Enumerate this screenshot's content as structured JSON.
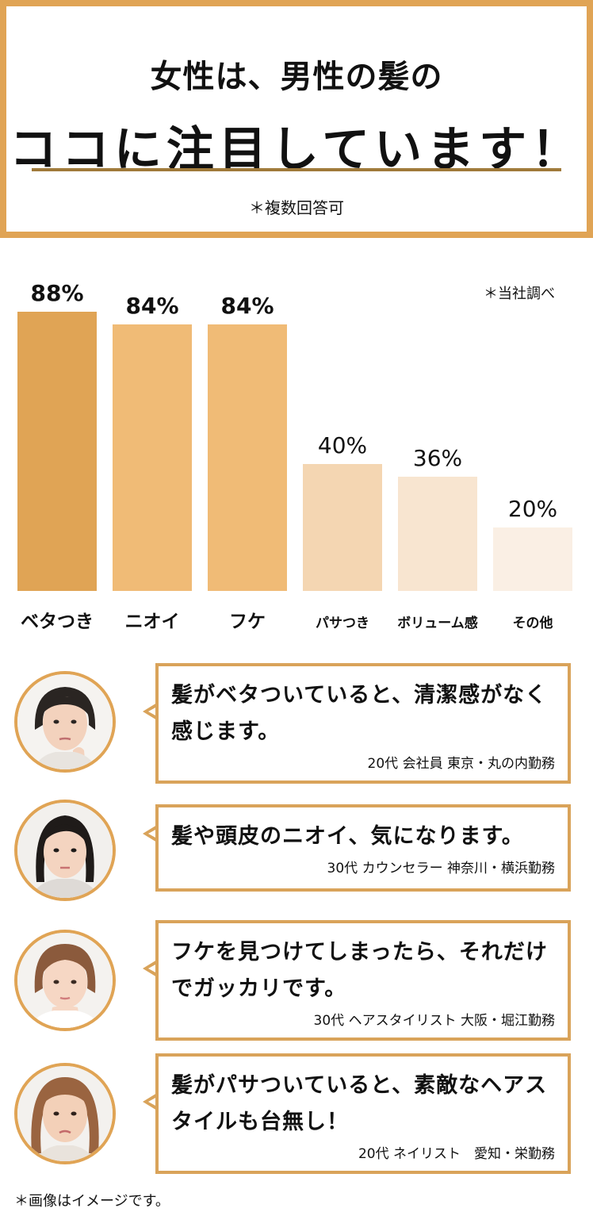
{
  "header": {
    "line1": "女性は、男性の髪の",
    "line2": "ココに注目しています！",
    "note": "＊複数回答可"
  },
  "survey_note": "＊当社調べ",
  "chart_data": {
    "type": "bar",
    "categories": [
      "ベタつき",
      "ニオイ",
      "フケ",
      "パサつき",
      "ボリューム感",
      "その他"
    ],
    "values": [
      88,
      84,
      84,
      40,
      36,
      20
    ],
    "value_labels": [
      "88%",
      "84%",
      "84%",
      "40%",
      "36%",
      "20%"
    ],
    "colors": [
      "#e0a455",
      "#f0bb76",
      "#f0bb76",
      "#f4d6b2",
      "#f8e5d0",
      "#faefe4"
    ],
    "ylim": [
      0,
      100
    ],
    "grid": false,
    "legend": "none"
  },
  "quotes": [
    {
      "text_lines": [
        "髪がベタついていると、清潔感がなく",
        "感じます。"
      ],
      "attribution": "20代 会社員 東京・丸の内勤務"
    },
    {
      "text_lines": [
        "髪や頭皮のニオイ、気になります。"
      ],
      "attribution": "30代 カウンセラー 神奈川・横浜勤務"
    },
    {
      "text_lines": [
        "フケを見つけてしまったら、それだけ",
        "でガッカリです。"
      ],
      "attribution": "30代 ヘアスタイリスト 大阪・堀江勤務"
    },
    {
      "text_lines": [
        "髪がパサついていると、素敵なヘアス",
        "タイルも台無し！"
      ],
      "attribution": "20代 ネイリスト　愛知・栄勤務"
    }
  ],
  "footer_note": "＊画像はイメージです。",
  "colors": {
    "accent": "#e0a455",
    "underline": "#a07a3a"
  }
}
